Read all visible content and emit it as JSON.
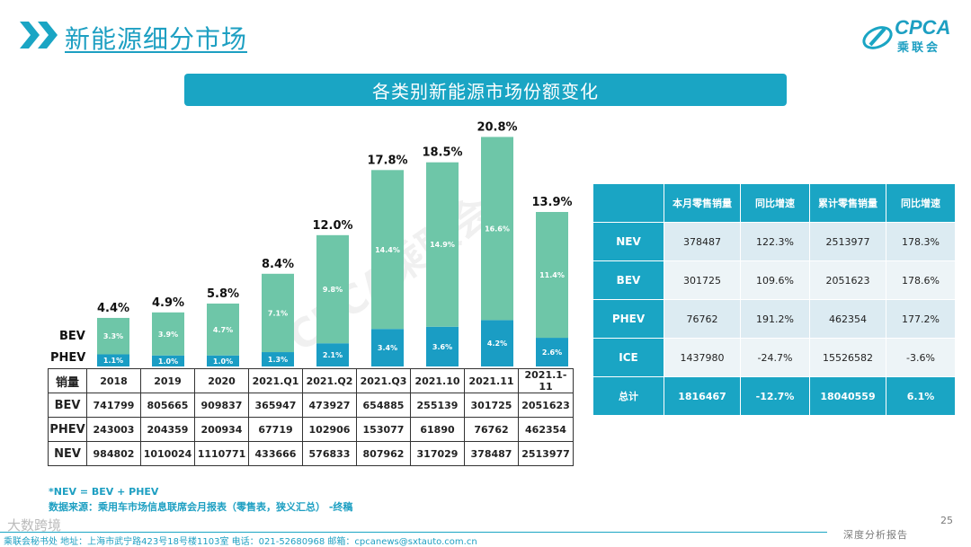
{
  "header": {
    "title": "新能源细分市场"
  },
  "logo": {
    "text": "CPCA",
    "sub": "乘联会"
  },
  "banner": {
    "title": "各类别新能源市场份额变化"
  },
  "watermark": {
    "text": "CPCA乘联会"
  },
  "chart_data": {
    "type": "bar",
    "stacked": true,
    "title": "各类别新能源市场份额变化",
    "categories": [
      "2018",
      "2019",
      "2020",
      "2021.Q1",
      "2021.Q2",
      "2021.Q3",
      "2021.10",
      "2021.11",
      "2021.1-11"
    ],
    "series": [
      {
        "name": "PHEV",
        "values": [
          1.1,
          1.0,
          1.0,
          1.3,
          2.1,
          3.4,
          3.6,
          4.2,
          2.6
        ],
        "labels": [
          "1.1%",
          "1.0%",
          "1.0%",
          "1.3%",
          "2.1%",
          "3.4%",
          "3.6%",
          "4.2%",
          "2.6%"
        ],
        "color": "#1a9dc4"
      },
      {
        "name": "BEV",
        "values": [
          3.3,
          3.9,
          4.7,
          7.1,
          9.8,
          14.4,
          14.9,
          16.6,
          11.4
        ],
        "labels": [
          "3.3%",
          "3.9%",
          "4.7%",
          "7.1%",
          "9.8%",
          "14.4%",
          "14.9%",
          "16.6%",
          "11.4%"
        ],
        "color": "#6ec6a8"
      }
    ],
    "totals": [
      4.4,
      4.9,
      5.8,
      8.4,
      12.0,
      17.8,
      18.5,
      20.8,
      13.9
    ],
    "total_labels": [
      "4.4%",
      "4.9%",
      "5.8%",
      "8.4%",
      "12.0%",
      "17.8%",
      "18.5%",
      "20.8%",
      "13.9%"
    ],
    "ylim": [
      0,
      22
    ],
    "grid": false,
    "legend": "left"
  },
  "data_table": {
    "corner": "销量",
    "columns": [
      "2018",
      "2019",
      "2020",
      "2021.Q1",
      "2021.Q2",
      "2021.Q3",
      "2021.10",
      "2021.11",
      "2021.1-11"
    ],
    "rows": [
      {
        "label": "BEV",
        "values": [
          "741799",
          "805665",
          "909837",
          "365947",
          "473927",
          "654885",
          "255139",
          "301725",
          "2051623"
        ]
      },
      {
        "label": "PHEV",
        "values": [
          "243003",
          "204359",
          "200934",
          "67719",
          "102906",
          "153077",
          "61890",
          "76762",
          "462354"
        ]
      },
      {
        "label": "NEV",
        "values": [
          "984802",
          "1010024",
          "1110771",
          "433666",
          "576833",
          "807962",
          "317029",
          "378487",
          "2513977"
        ]
      }
    ]
  },
  "retail_table": {
    "headers": [
      "",
      "本月零售销量",
      "同比增速",
      "累计零售销量",
      "同比增速"
    ],
    "rows": [
      {
        "label": "NEV",
        "values": [
          "378487",
          "122.3%",
          "2513977",
          "178.3%"
        ]
      },
      {
        "label": "BEV",
        "values": [
          "301725",
          "109.6%",
          "2051623",
          "178.6%"
        ]
      },
      {
        "label": "PHEV",
        "values": [
          "76762",
          "191.2%",
          "462354",
          "177.2%"
        ]
      },
      {
        "label": "ICE",
        "values": [
          "1437980",
          "-24.7%",
          "15526582",
          "-3.6%"
        ]
      }
    ],
    "total": {
      "label": "总计",
      "values": [
        "1816467",
        "-12.7%",
        "18040559",
        "6.1%"
      ]
    }
  },
  "notes": {
    "line1": "*NEV = BEV + PHEV",
    "line2": "数据来源：乘用车市场信息联席会月报表（零售表，狭义汇总） -终稿"
  },
  "footer": {
    "address": "乘联会秘书处   地址：上海市武宁路423号18号楼1103室  电话：021-52680968   邮箱：cpcanews@sxtauto.com.cn",
    "right": "深度分析报告",
    "page": "25",
    "left_watermark": "大数跨境"
  },
  "colors": {
    "accent": "#1aa5c4",
    "bev": "#6ec6a8",
    "phev": "#1a9dc4"
  }
}
